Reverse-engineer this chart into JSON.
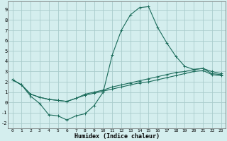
{
  "xlabel": "Humidex (Indice chaleur)",
  "background_color": "#d4eeee",
  "grid_color": "#aacccc",
  "line_color": "#1a6b5a",
  "xlim": [
    -0.5,
    23.5
  ],
  "ylim": [
    -2.5,
    9.8
  ],
  "xticks": [
    0,
    1,
    2,
    3,
    4,
    5,
    6,
    7,
    8,
    9,
    10,
    11,
    12,
    13,
    14,
    15,
    16,
    17,
    18,
    19,
    20,
    21,
    22,
    23
  ],
  "yticks": [
    -2,
    -1,
    0,
    1,
    2,
    3,
    4,
    5,
    6,
    7,
    8,
    9
  ],
  "line1_x": [
    0,
    1,
    2,
    3,
    4,
    5,
    6,
    7,
    8,
    9,
    10,
    11,
    12,
    13,
    14,
    15,
    16,
    17,
    18,
    19,
    20,
    21,
    22,
    23
  ],
  "line1_y": [
    2.2,
    1.7,
    0.6,
    -0.1,
    -1.2,
    -1.3,
    -1.7,
    -1.3,
    -1.1,
    -0.3,
    1.0,
    4.6,
    7.0,
    8.5,
    9.2,
    9.3,
    7.3,
    5.8,
    4.5,
    3.5,
    3.2,
    3.3,
    3.0,
    2.8
  ],
  "line2_x": [
    0,
    1,
    2,
    3,
    4,
    5,
    6,
    7,
    8,
    9,
    10,
    11,
    12,
    13,
    14,
    15,
    16,
    17,
    18,
    19,
    20,
    21,
    22,
    23
  ],
  "line2_y": [
    2.2,
    1.7,
    0.8,
    0.5,
    0.3,
    0.2,
    0.1,
    0.4,
    0.8,
    1.0,
    1.2,
    1.5,
    1.7,
    1.9,
    2.1,
    2.3,
    2.5,
    2.7,
    2.9,
    3.0,
    3.2,
    3.3,
    2.8,
    2.7
  ],
  "line3_x": [
    0,
    1,
    2,
    3,
    4,
    5,
    6,
    7,
    8,
    9,
    10,
    11,
    12,
    13,
    14,
    15,
    16,
    17,
    18,
    19,
    20,
    21,
    22,
    23
  ],
  "line3_y": [
    2.2,
    1.7,
    0.8,
    0.5,
    0.3,
    0.2,
    0.1,
    0.4,
    0.7,
    0.9,
    1.1,
    1.3,
    1.5,
    1.7,
    1.9,
    2.0,
    2.2,
    2.4,
    2.6,
    2.8,
    3.0,
    3.1,
    2.7,
    2.6
  ]
}
